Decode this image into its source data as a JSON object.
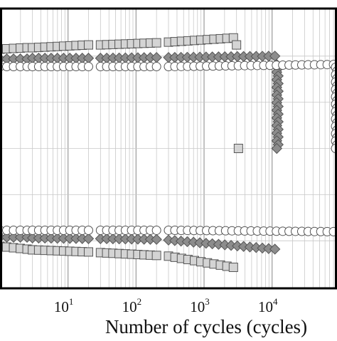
{
  "chart_data": {
    "type": "scatter",
    "title": "",
    "xlabel": "Number of cycles (cycles)",
    "ylabel": "",
    "x_scale": "log",
    "xlim": [
      1,
      90000
    ],
    "ylim": [
      -1,
      1
    ],
    "grid": true,
    "x_ticks": [
      {
        "base": "10",
        "exp": "1",
        "value": 10
      },
      {
        "base": "10",
        "exp": "2",
        "value": 100
      },
      {
        "base": "10",
        "exp": "3",
        "value": 1000
      },
      {
        "base": "10",
        "exp": "4",
        "value": 10000
      }
    ],
    "series": [
      {
        "marker": "square",
        "fill": "#d4d4d4",
        "points": [
          [
            1,
            0.71
          ],
          [
            3,
            0.73
          ],
          [
            10,
            0.74
          ],
          [
            30,
            0.75
          ],
          [
            100,
            0.76
          ],
          [
            300,
            0.765
          ],
          [
            1000,
            0.77
          ],
          [
            2500,
            0.79
          ],
          [
            3000,
            -0.88
          ],
          [
            1,
            -0.71
          ],
          [
            3,
            -0.73
          ],
          [
            10,
            -0.74
          ],
          [
            30,
            -0.755
          ],
          [
            100,
            -0.77
          ],
          [
            300,
            -0.78
          ],
          [
            1000,
            -0.8
          ],
          [
            2000,
            -0.82
          ],
          [
            2600,
            -0.84
          ],
          [
            3000,
            -0.86
          ],
          [
            3100,
            -0.87
          ],
          [
            3200,
            0.0
          ]
        ],
        "segments": [
          {
            "x": [
              1,
              2.5
            ],
            "y": [
              0.71,
              0.72
            ],
            "y2": [
              -0.7,
              -0.72
            ]
          },
          {
            "x": [
              3,
              20
            ],
            "y": [
              0.72,
              0.74
            ],
            "y2": [
              -0.725,
              -0.74
            ]
          },
          {
            "x": [
              30,
              200
            ],
            "y": [
              0.74,
              0.755
            ],
            "y2": [
              -0.745,
              -0.765
            ]
          },
          {
            "x": [
              300,
              2700
            ],
            "y": [
              0.76,
              0.79
            ],
            "y2": [
              -0.77,
              -0.85
            ]
          }
        ]
      },
      {
        "marker": "diamond",
        "fill": "#8c8c8c",
        "segments": [
          {
            "x": [
              1,
              2.5
            ],
            "y": [
              0.64,
              0.64
            ],
            "y2": [
              -0.635,
              -0.635
            ]
          },
          {
            "x": [
              3,
              20
            ],
            "y": [
              0.645,
              0.645
            ],
            "y2": [
              -0.64,
              -0.645
            ]
          },
          {
            "x": [
              30,
              200
            ],
            "y": [
              0.645,
              0.65
            ],
            "y2": [
              -0.645,
              -0.65
            ]
          },
          {
            "x": [
              300,
              11000
            ],
            "y": [
              0.65,
              0.66
            ],
            "y2": [
              -0.655,
              -0.72
            ]
          }
        ],
        "drop": {
          "x": 12000,
          "y": [
            0.6,
            0.0
          ]
        }
      },
      {
        "marker": "circle",
        "fill": "#ffffff",
        "segments": [
          {
            "x": [
              1,
              2.5
            ],
            "y": [
              0.585,
              0.585
            ],
            "y2": [
              -0.585,
              -0.585
            ]
          },
          {
            "x": [
              3,
              20
            ],
            "y": [
              0.585,
              0.585
            ],
            "y2": [
              -0.585,
              -0.585
            ]
          },
          {
            "x": [
              30,
              200
            ],
            "y": [
              0.585,
              0.585
            ],
            "y2": [
              -0.585,
              -0.585
            ]
          },
          {
            "x": [
              300,
              80000
            ],
            "y": [
              0.585,
              0.6
            ],
            "y2": [
              -0.585,
              -0.595
            ]
          }
        ],
        "drop": {
          "x": 88000,
          "y": [
            0.58,
            0.0
          ]
        }
      }
    ]
  }
}
